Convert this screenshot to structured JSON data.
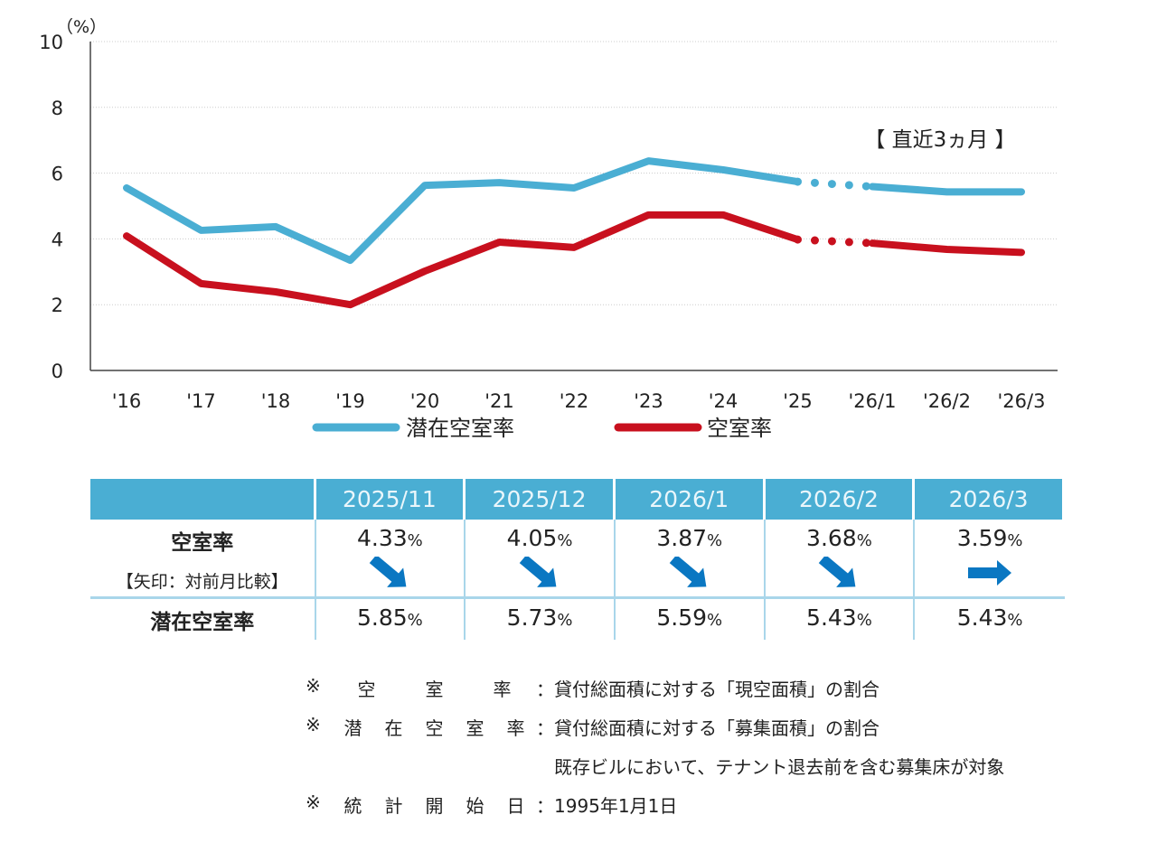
{
  "chart_data": {
    "type": "line",
    "unit_label": "（%）",
    "ylim": [
      0,
      10
    ],
    "yticks": [
      "0",
      "2",
      "4",
      "6",
      "8",
      "10"
    ],
    "categories": [
      "'16",
      "'17",
      "'18",
      "'19",
      "'20",
      "'21",
      "'22",
      "'23",
      "'24",
      "'25",
      "'26/1",
      "'26/2",
      "'26/3"
    ],
    "annotation": "【 直近3ヵ月 】",
    "dotted_between": [
      "'25",
      "'26/1"
    ],
    "series": [
      {
        "name": "潜在空室率",
        "color": "#4aaed3",
        "values": [
          5.55,
          4.26,
          4.37,
          3.35,
          5.63,
          5.71,
          5.55,
          6.37,
          6.1,
          5.74,
          5.59,
          5.43,
          5.43
        ]
      },
      {
        "name": "空室率",
        "color": "#c8101e",
        "values": [
          4.09,
          2.64,
          2.39,
          2.0,
          3.02,
          3.9,
          3.74,
          4.73,
          4.73,
          3.98,
          3.87,
          3.68,
          3.59
        ]
      }
    ],
    "grid": true,
    "legend_position": "bottom"
  },
  "table": {
    "columns": [
      "2025/11",
      "2025/12",
      "2026/1",
      "2026/2",
      "2026/3"
    ],
    "vacancy_label": "空室率",
    "arrow_note": "【矢印：対前月比較】",
    "potential_label": "潜在空室率",
    "pct": "%",
    "vacancy": [
      "4.33",
      "4.05",
      "3.87",
      "3.68",
      "3.59"
    ],
    "arrows": [
      "down-right",
      "down-right",
      "down-right",
      "down-right",
      "right"
    ],
    "potential": [
      "5.85",
      "5.73",
      "5.59",
      "5.43",
      "5.43"
    ],
    "arrow_color": "#0a77c2"
  },
  "notes": [
    {
      "key": [
        "※",
        "空",
        "室",
        "率"
      ],
      "text": "貸付総面積に対する「現空面積」の割合"
    },
    {
      "key": [
        "※",
        "潜",
        "在",
        "空",
        "室",
        "率"
      ],
      "text": "貸付総面積に対する「募集面積」の割合"
    },
    {
      "key": [],
      "text": "既存ビルにおいて、テナント退去前を含む募集床が対象"
    },
    {
      "key": [
        "※",
        "統",
        "計",
        "開",
        "始",
        "日"
      ],
      "text": "1995年1月1日"
    }
  ],
  "colon": "："
}
